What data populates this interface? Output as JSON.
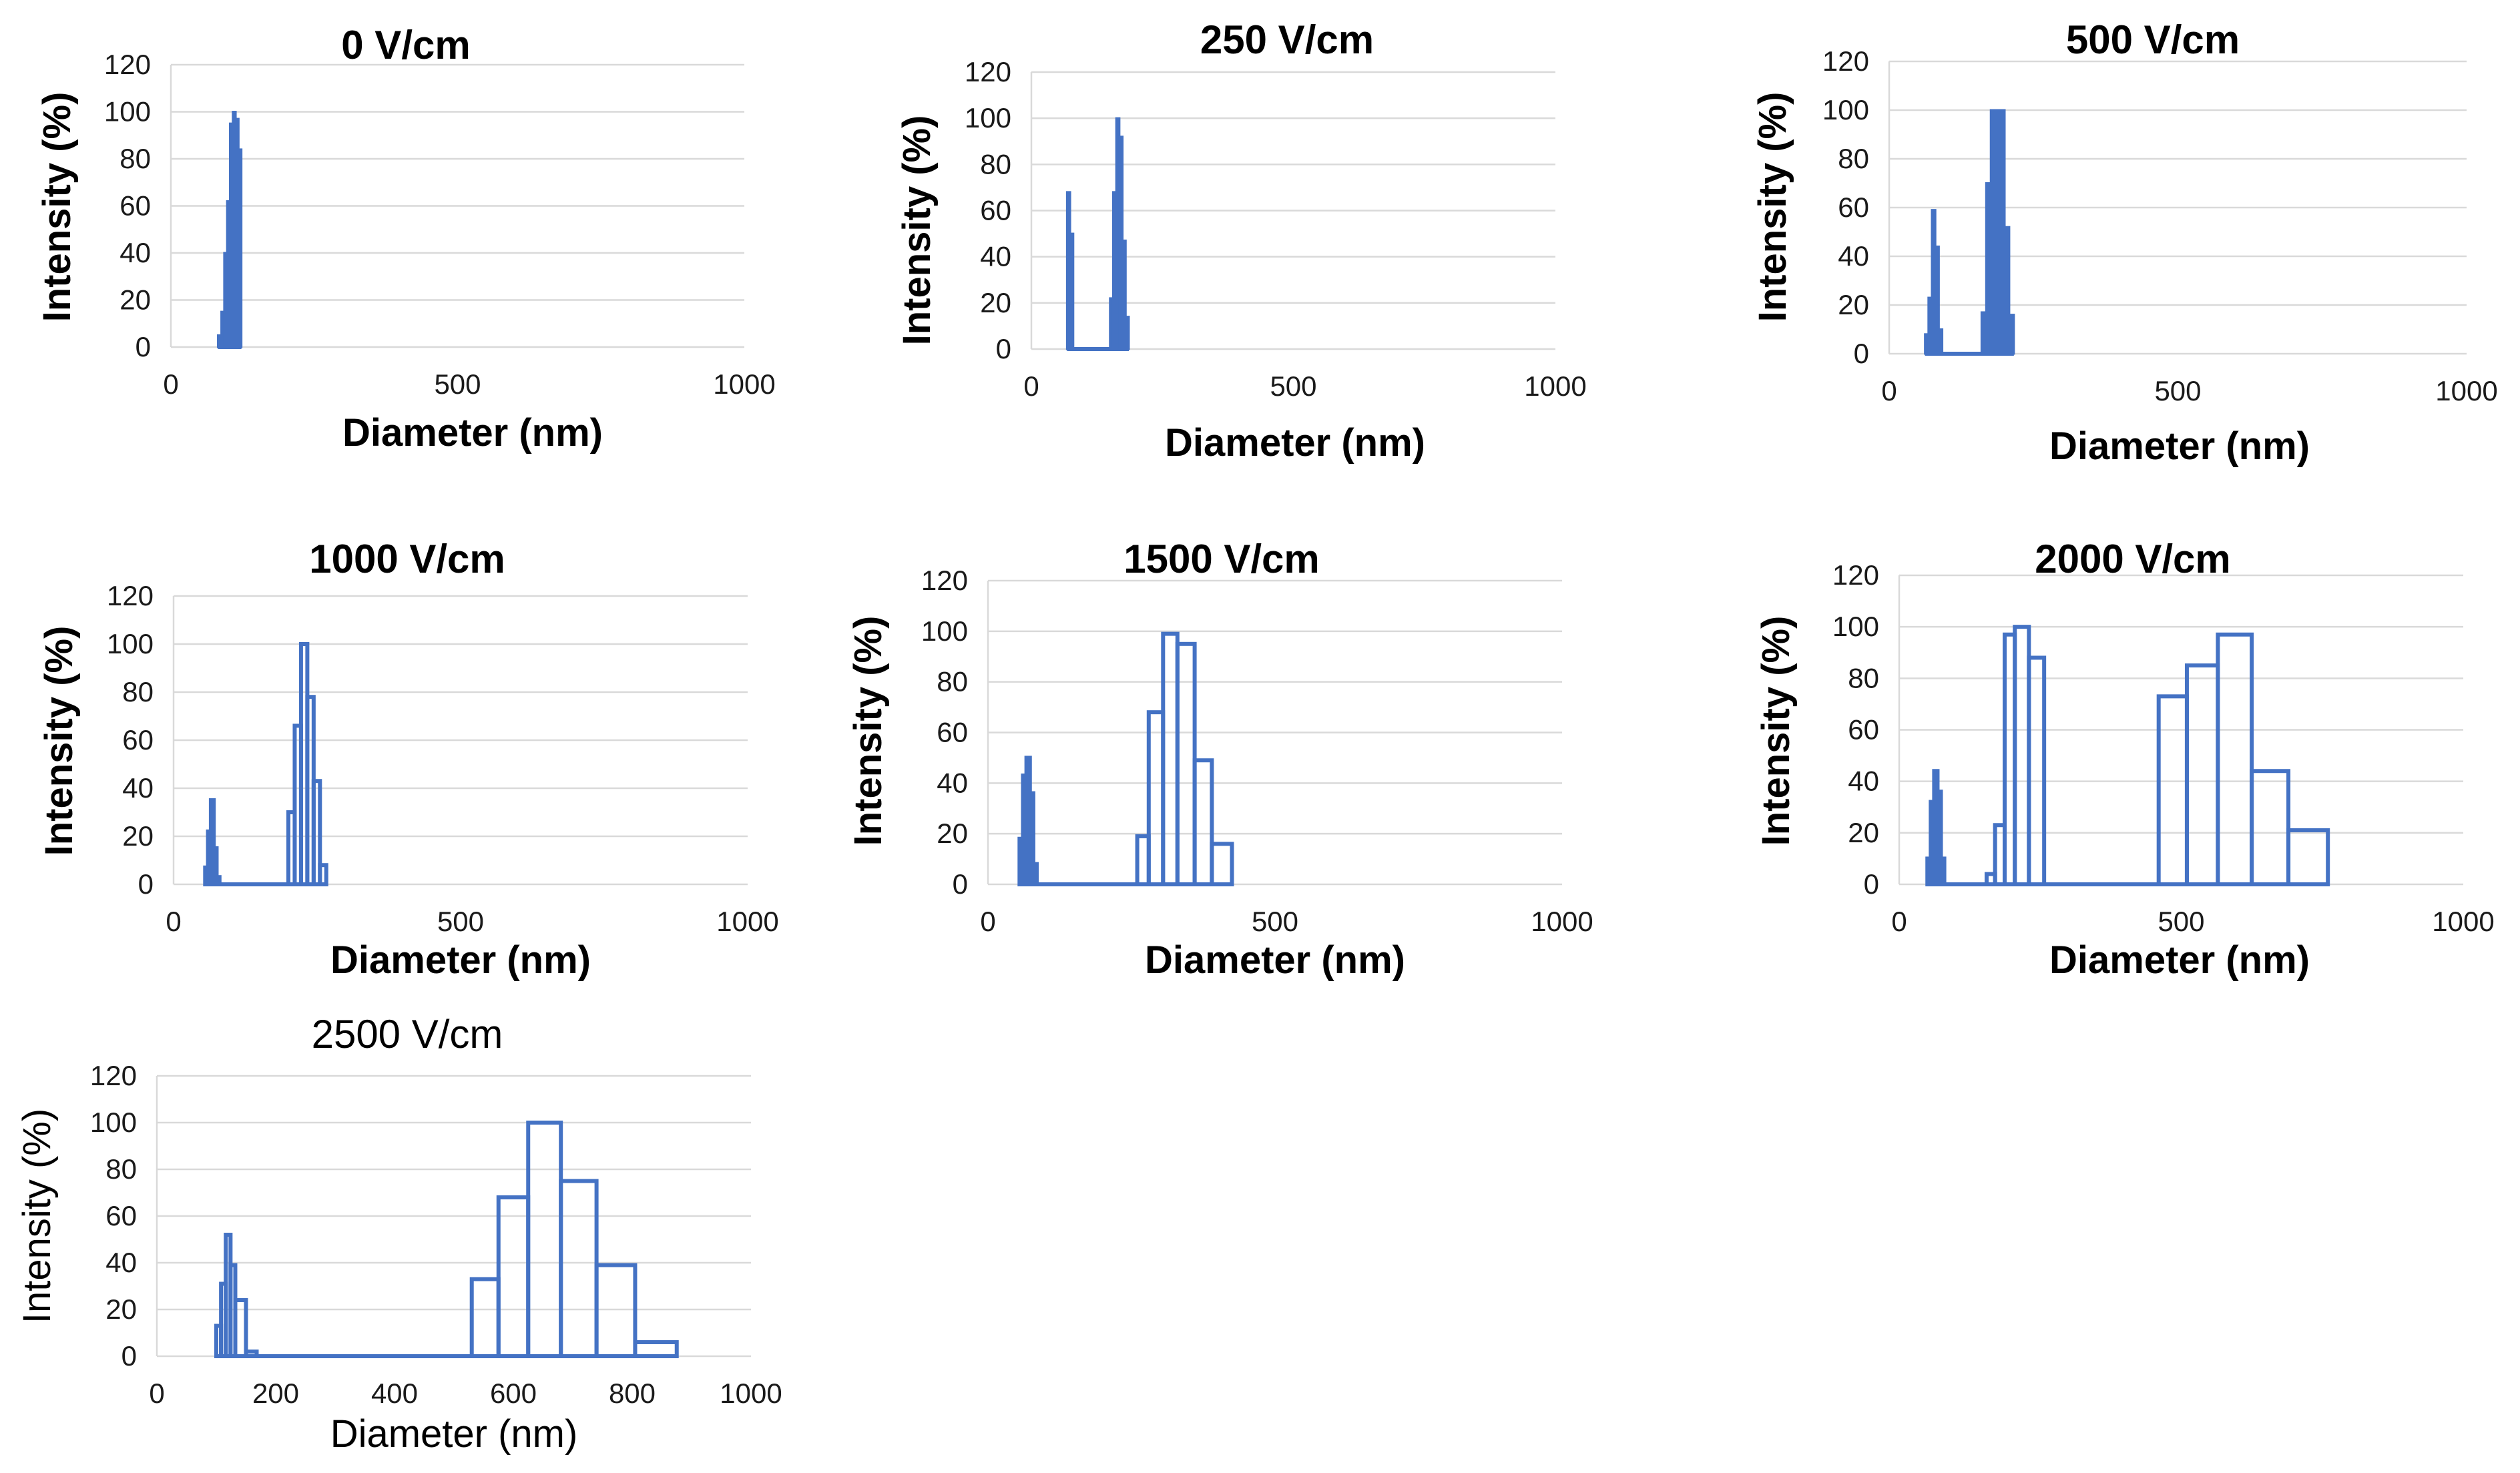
{
  "chart_data": [
    {
      "type": "bar",
      "title": "0 V/cm",
      "xlabel": "Diameter (nm)",
      "ylabel": "Intensity (%)",
      "xlim": [
        0,
        1000
      ],
      "ylim": [
        0,
        120
      ],
      "xticks": [
        0,
        500,
        1000
      ],
      "yticks": [
        0,
        20,
        40,
        60,
        80,
        100,
        120
      ],
      "style": "filled",
      "bins": [
        {
          "x0": 82,
          "x1": 88,
          "y": 5
        },
        {
          "x0": 88,
          "x1": 93,
          "y": 15
        },
        {
          "x0": 93,
          "x1": 98,
          "y": 40
        },
        {
          "x0": 98,
          "x1": 103,
          "y": 62
        },
        {
          "x0": 103,
          "x1": 108,
          "y": 95
        },
        {
          "x0": 108,
          "x1": 113,
          "y": 100
        },
        {
          "x0": 113,
          "x1": 118,
          "y": 97
        },
        {
          "x0": 118,
          "x1": 123,
          "y": 84
        }
      ]
    },
    {
      "type": "bar",
      "title": "250 V/cm",
      "xlabel": "Diameter (nm)",
      "ylabel": "Intensity (%)",
      "xlim": [
        0,
        1000
      ],
      "ylim": [
        0,
        120
      ],
      "xticks": [
        0,
        500,
        1000
      ],
      "yticks": [
        0,
        20,
        40,
        60,
        80,
        100,
        120
      ],
      "style": "filled",
      "bins": [
        {
          "x0": 68,
          "x1": 74,
          "y": 68
        },
        {
          "x0": 74,
          "x1": 80,
          "y": 50
        },
        {
          "x0": 150,
          "x1": 156,
          "y": 22
        },
        {
          "x0": 156,
          "x1": 162,
          "y": 68
        },
        {
          "x0": 162,
          "x1": 168,
          "y": 100
        },
        {
          "x0": 168,
          "x1": 174,
          "y": 92
        },
        {
          "x0": 174,
          "x1": 180,
          "y": 47
        },
        {
          "x0": 180,
          "x1": 186,
          "y": 14
        }
      ]
    },
    {
      "type": "bar",
      "title": "500 V/cm",
      "xlabel": "Diameter (nm)",
      "ylabel": "Intensity (%)",
      "xlim": [
        0,
        1000
      ],
      "ylim": [
        0,
        120
      ],
      "xticks": [
        0,
        500,
        1000
      ],
      "yticks": [
        0,
        20,
        40,
        60,
        80,
        100,
        120
      ],
      "style": "filled",
      "bins": [
        {
          "x0": 62,
          "x1": 68,
          "y": 8
        },
        {
          "x0": 68,
          "x1": 74,
          "y": 23
        },
        {
          "x0": 74,
          "x1": 80,
          "y": 59
        },
        {
          "x0": 80,
          "x1": 86,
          "y": 44
        },
        {
          "x0": 86,
          "x1": 92,
          "y": 10
        },
        {
          "x0": 160,
          "x1": 168,
          "y": 17
        },
        {
          "x0": 168,
          "x1": 176,
          "y": 70
        },
        {
          "x0": 176,
          "x1": 184,
          "y": 100
        },
        {
          "x0": 184,
          "x1": 192,
          "y": 100
        },
        {
          "x0": 192,
          "x1": 200,
          "y": 100
        },
        {
          "x0": 200,
          "x1": 208,
          "y": 52
        },
        {
          "x0": 208,
          "x1": 216,
          "y": 16
        }
      ]
    },
    {
      "type": "bar",
      "title": "1000 V/cm",
      "xlabel": "Diameter (nm)",
      "ylabel": "Intensity (%)",
      "xlim": [
        0,
        1000
      ],
      "ylim": [
        0,
        120
      ],
      "xticks": [
        0,
        500,
        1000
      ],
      "yticks": [
        0,
        20,
        40,
        60,
        80,
        100,
        120
      ],
      "style": "outline",
      "bins": [
        {
          "x0": 55,
          "x1": 60,
          "y": 7
        },
        {
          "x0": 60,
          "x1": 65,
          "y": 22
        },
        {
          "x0": 65,
          "x1": 70,
          "y": 35
        },
        {
          "x0": 70,
          "x1": 75,
          "y": 15
        },
        {
          "x0": 75,
          "x1": 80,
          "y": 3
        },
        {
          "x0": 200,
          "x1": 211,
          "y": 30
        },
        {
          "x0": 211,
          "x1": 222,
          "y": 66
        },
        {
          "x0": 222,
          "x1": 233,
          "y": 100
        },
        {
          "x0": 233,
          "x1": 244,
          "y": 78
        },
        {
          "x0": 244,
          "x1": 255,
          "y": 43
        },
        {
          "x0": 255,
          "x1": 266,
          "y": 8
        }
      ]
    },
    {
      "type": "bar",
      "title": "1500 V/cm",
      "xlabel": "Diameter (nm)",
      "ylabel": "Intensity (%)",
      "xlim": [
        0,
        1000
      ],
      "ylim": [
        0,
        120
      ],
      "xticks": [
        0,
        500,
        1000
      ],
      "yticks": [
        0,
        20,
        40,
        60,
        80,
        100,
        120
      ],
      "style": "outline",
      "bins": [
        {
          "x0": 55,
          "x1": 61,
          "y": 18
        },
        {
          "x0": 61,
          "x1": 67,
          "y": 43
        },
        {
          "x0": 67,
          "x1": 73,
          "y": 50
        },
        {
          "x0": 73,
          "x1": 79,
          "y": 36
        },
        {
          "x0": 79,
          "x1": 85,
          "y": 8
        },
        {
          "x0": 260,
          "x1": 280,
          "y": 19
        },
        {
          "x0": 280,
          "x1": 305,
          "y": 68
        },
        {
          "x0": 305,
          "x1": 330,
          "y": 99
        },
        {
          "x0": 330,
          "x1": 360,
          "y": 95
        },
        {
          "x0": 360,
          "x1": 390,
          "y": 49
        },
        {
          "x0": 390,
          "x1": 425,
          "y": 16
        }
      ]
    },
    {
      "type": "bar",
      "title": "2000 V/cm",
      "xlabel": "Diameter (nm)",
      "ylabel": "Intensity (%)",
      "xlim": [
        0,
        1000
      ],
      "ylim": [
        0,
        120
      ],
      "xticks": [
        0,
        500,
        1000
      ],
      "yticks": [
        0,
        20,
        40,
        60,
        80,
        100,
        120
      ],
      "style": "outline",
      "bins": [
        {
          "x0": 50,
          "x1": 56,
          "y": 10
        },
        {
          "x0": 56,
          "x1": 62,
          "y": 32
        },
        {
          "x0": 62,
          "x1": 68,
          "y": 44
        },
        {
          "x0": 68,
          "x1": 74,
          "y": 36
        },
        {
          "x0": 74,
          "x1": 80,
          "y": 10
        },
        {
          "x0": 155,
          "x1": 170,
          "y": 4
        },
        {
          "x0": 170,
          "x1": 187,
          "y": 23
        },
        {
          "x0": 187,
          "x1": 205,
          "y": 97
        },
        {
          "x0": 205,
          "x1": 230,
          "y": 100
        },
        {
          "x0": 230,
          "x1": 257,
          "y": 88
        },
        {
          "x0": 460,
          "x1": 510,
          "y": 73
        },
        {
          "x0": 510,
          "x1": 565,
          "y": 85
        },
        {
          "x0": 565,
          "x1": 625,
          "y": 97
        },
        {
          "x0": 625,
          "x1": 690,
          "y": 44
        },
        {
          "x0": 690,
          "x1": 760,
          "y": 21
        }
      ]
    },
    {
      "type": "bar",
      "title": "2500 V/cm",
      "xlabel": "Diameter (nm)",
      "ylabel": "Intensity (%)",
      "xlim": [
        0,
        1000
      ],
      "ylim": [
        0,
        120
      ],
      "xticks": [
        0,
        200,
        400,
        600,
        800,
        1000
      ],
      "yticks": [
        0,
        20,
        40,
        60,
        80,
        100,
        120
      ],
      "style": "outline",
      "bins": [
        {
          "x0": 100,
          "x1": 108,
          "y": 13
        },
        {
          "x0": 108,
          "x1": 116,
          "y": 31
        },
        {
          "x0": 116,
          "x1": 124,
          "y": 52
        },
        {
          "x0": 124,
          "x1": 132,
          "y": 39
        },
        {
          "x0": 132,
          "x1": 150,
          "y": 24
        },
        {
          "x0": 150,
          "x1": 168,
          "y": 2
        },
        {
          "x0": 530,
          "x1": 575,
          "y": 33
        },
        {
          "x0": 575,
          "x1": 625,
          "y": 68
        },
        {
          "x0": 625,
          "x1": 680,
          "y": 100
        },
        {
          "x0": 680,
          "x1": 740,
          "y": 75
        },
        {
          "x0": 740,
          "x1": 805,
          "y": 39
        },
        {
          "x0": 805,
          "x1": 875,
          "y": 6
        }
      ]
    }
  ]
}
